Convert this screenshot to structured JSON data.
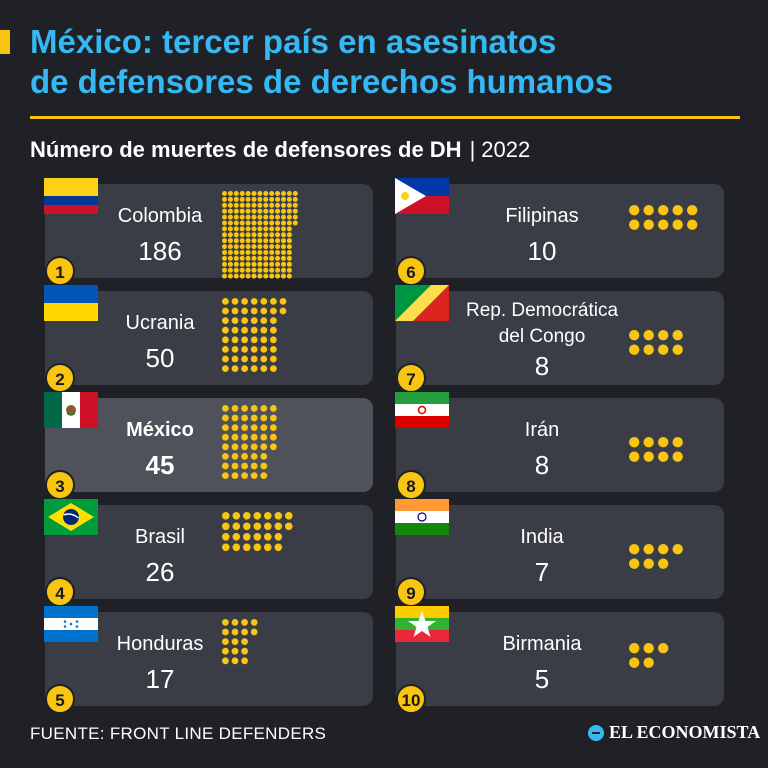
{
  "header": {
    "title_line1": "México: tercer país en asesinatos",
    "title_line2": "de defensores de derechos humanos",
    "subtitle": "Número de muertes de defensores de DH",
    "separator": "|",
    "year": "2022"
  },
  "colors": {
    "accent": "#f7c512",
    "title": "#36b9f3",
    "background": "#1f2126",
    "card": "#3a3d45",
    "card_highlight": "#4f525a"
  },
  "chart_data": {
    "type": "pictogram",
    "title": "Número de muertes de defensores de DH | 2022",
    "unit": "1 dot = 1 death",
    "categories": [
      "Colombia",
      "Ucrania",
      "México",
      "Brasil",
      "Honduras",
      "Filipinas",
      "Rep. Democrática del Congo",
      "Irán",
      "India",
      "Birmania"
    ],
    "values": [
      186,
      50,
      45,
      26,
      17,
      10,
      8,
      8,
      7,
      5
    ],
    "ranks": [
      "1",
      "2",
      "3",
      "4",
      "5",
      "6",
      "7",
      "8",
      "9",
      "10"
    ],
    "display_values": [
      "186",
      "50",
      "45",
      "26",
      "17",
      "10",
      "8",
      "8",
      "7",
      "5"
    ],
    "highlight": "México"
  },
  "countries": [
    {
      "rank": "1",
      "name": "Colombia",
      "value": "186",
      "flag": "colombia-flag-icon"
    },
    {
      "rank": "2",
      "name": "Ucrania",
      "value": "50",
      "flag": "ukraine-flag-icon"
    },
    {
      "rank": "3",
      "name": "México",
      "value": "45",
      "flag": "mexico-flag-icon"
    },
    {
      "rank": "4",
      "name": "Brasil",
      "value": "26",
      "flag": "brazil-flag-icon"
    },
    {
      "rank": "5",
      "name": "Honduras",
      "value": "17",
      "flag": "honduras-flag-icon"
    },
    {
      "rank": "6",
      "name": "Filipinas",
      "value": "10",
      "flag": "philippines-flag-icon"
    },
    {
      "rank": "7",
      "name_line1": "Rep. Democrática",
      "name_line2": "del Congo",
      "value": "8",
      "flag": "congo-flag-icon"
    },
    {
      "rank": "8",
      "name": "Irán",
      "value": "8",
      "flag": "iran-flag-icon"
    },
    {
      "rank": "9",
      "name": "India",
      "value": "7",
      "flag": "india-flag-icon"
    },
    {
      "rank": "10",
      "name": "Birmania",
      "value": "5",
      "flag": "myanmar-flag-icon"
    }
  ],
  "footer": {
    "source": "FUENTE: FRONT LINE DEFENDERS",
    "logo": "EL ECONOMISTA"
  }
}
